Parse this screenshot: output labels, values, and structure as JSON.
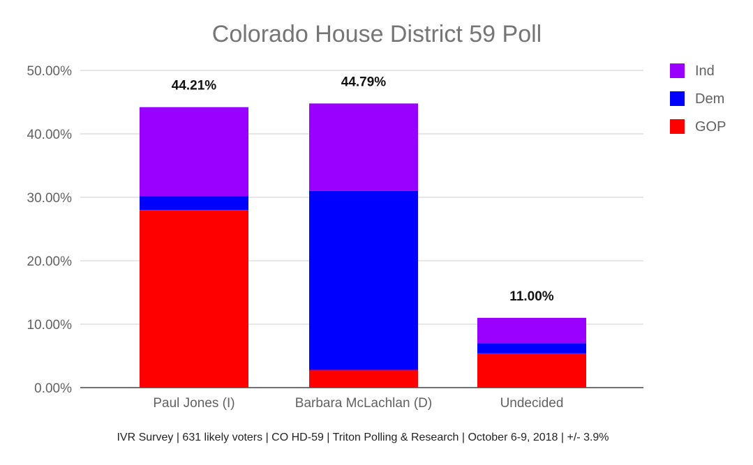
{
  "chart_data": {
    "type": "stacked-bar",
    "title": "Colorado House District 59 Poll",
    "categories": [
      "Paul Jones (I)",
      "Barbara McLachlan (D)",
      "Undecided"
    ],
    "series": [
      {
        "name": "GOP",
        "color": "#ff0000",
        "values": [
          28.0,
          2.8,
          5.4
        ]
      },
      {
        "name": "Dem",
        "color": "#0000ff",
        "values": [
          2.2,
          28.2,
          1.6
        ]
      },
      {
        "name": "Ind",
        "color": "#9900ff",
        "values": [
          14.01,
          13.79,
          4.0
        ]
      }
    ],
    "totals": [
      "44.21%",
      "44.79%",
      "11.00%"
    ],
    "legend_order": [
      "Ind",
      "Dem",
      "GOP"
    ],
    "legend_position": "right",
    "ylim": [
      0,
      50
    ],
    "yticks": [
      {
        "value": 0,
        "label": "0.00%"
      },
      {
        "value": 10,
        "label": "10.00%"
      },
      {
        "value": 20,
        "label": "20.00%"
      },
      {
        "value": 30,
        "label": "30.00%"
      },
      {
        "value": 40,
        "label": "40.00%"
      },
      {
        "value": 50,
        "label": "50.00%"
      }
    ],
    "grid": true,
    "xlabel": "",
    "ylabel": "",
    "footnote": "IVR Survey | 631 likely voters | CO HD-59 | Triton Polling & Research | October 6-9, 2018 |  +/- 3.9%"
  }
}
